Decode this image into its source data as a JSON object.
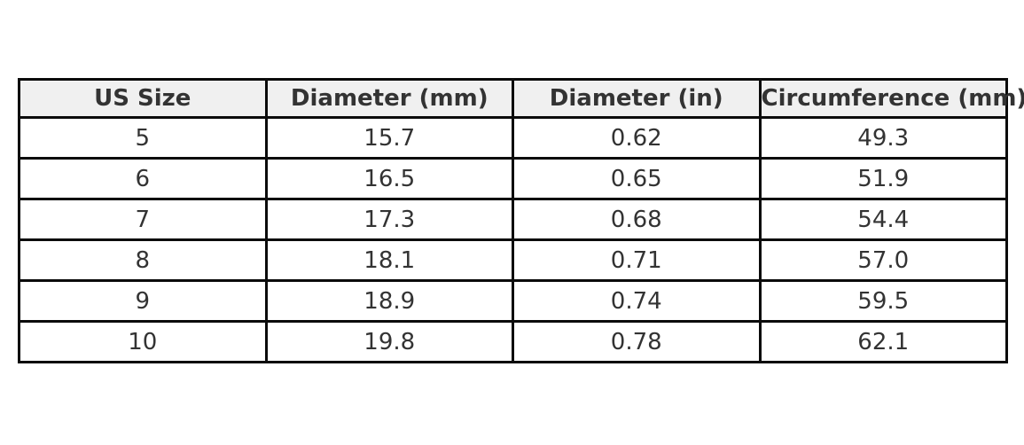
{
  "chart_data": {
    "type": "table",
    "title": "",
    "columns": [
      "US Size",
      "Diameter (mm)",
      "Diameter (in)",
      "Circumference (mm)"
    ],
    "rows": [
      [
        "5",
        "15.7",
        "0.62",
        "49.3"
      ],
      [
        "6",
        "16.5",
        "0.65",
        "51.9"
      ],
      [
        "7",
        "17.3",
        "0.68",
        "54.4"
      ],
      [
        "8",
        "18.1",
        "0.71",
        "57.0"
      ],
      [
        "9",
        "18.9",
        "0.74",
        "59.5"
      ],
      [
        "10",
        "19.8",
        "0.78",
        "62.1"
      ]
    ]
  },
  "colors": {
    "page_bg": "#ffffff",
    "header_bg": "#f0f0f0",
    "cell_bg": "#ffffff",
    "border": "#0b0b0b",
    "text": "#333333"
  }
}
